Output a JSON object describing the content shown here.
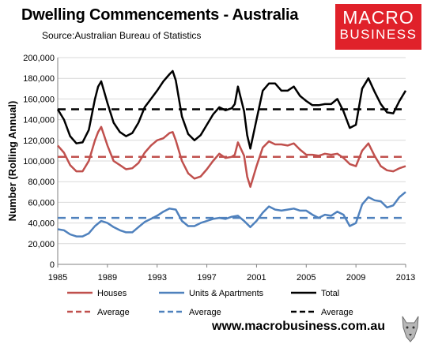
{
  "header": {
    "title": "Dwelling Commencements - Australia",
    "source": "Source:Australian Bureau of Statistics"
  },
  "logo": {
    "line1": "MACRO",
    "line2": "BUSINESS"
  },
  "footer": {
    "website": "www.macrobusiness.com.au"
  },
  "colors": {
    "houses": "#c0504d",
    "units": "#4f81bd",
    "total": "#000000",
    "brand": "#e0212a"
  },
  "chart_data": {
    "type": "line",
    "ylabel": "Number (Rolling Annual)",
    "xlim": [
      1985,
      2013
    ],
    "ylim": [
      0,
      200000
    ],
    "yticks": [
      0,
      20000,
      40000,
      60000,
      80000,
      100000,
      120000,
      140000,
      160000,
      180000,
      200000
    ],
    "ytick_labels": [
      "0",
      "20,000",
      "40,000",
      "60,000",
      "80,000",
      "100,000",
      "120,000",
      "140,000",
      "160,000",
      "180,000",
      "200,000"
    ],
    "xticks": [
      1985,
      1989,
      1993,
      1997,
      2001,
      2005,
      2009,
      2013
    ],
    "xtick_labels": [
      "1985",
      "1989",
      "1993",
      "1997",
      "2001",
      "2005",
      "2009",
      "2013"
    ],
    "grid": true,
    "legend_position": "bottom",
    "series": [
      {
        "name": "Houses",
        "key": "houses",
        "style": "solid",
        "x": [
          1985.0,
          1985.5,
          1986.0,
          1986.5,
          1987.0,
          1987.5,
          1988.0,
          1988.25,
          1988.5,
          1989.0,
          1989.5,
          1990.0,
          1990.5,
          1991.0,
          1991.5,
          1992.0,
          1992.5,
          1993.0,
          1993.5,
          1994.0,
          1994.25,
          1994.5,
          1995.0,
          1995.5,
          1996.0,
          1996.5,
          1997.0,
          1997.5,
          1998.0,
          1998.5,
          1999.0,
          1999.25,
          1999.5,
          2000.0,
          2000.25,
          2000.5,
          2001.0,
          2001.5,
          2002.0,
          2002.5,
          2003.0,
          2003.5,
          2004.0,
          2004.5,
          2005.0,
          2005.5,
          2006.0,
          2006.5,
          2007.0,
          2007.5,
          2008.0,
          2008.5,
          2009.0,
          2009.5,
          2010.0,
          2010.5,
          2011.0,
          2011.5,
          2012.0,
          2012.5,
          2013.0
        ],
        "y": [
          115000,
          108000,
          96000,
          90000,
          90000,
          100000,
          120000,
          128000,
          133000,
          115000,
          100000,
          96000,
          92000,
          93000,
          98000,
          108000,
          115000,
          120000,
          122000,
          127000,
          128000,
          120000,
          100000,
          88000,
          83000,
          85000,
          92000,
          100000,
          107000,
          103000,
          104000,
          106000,
          118000,
          105000,
          85000,
          75000,
          95000,
          113000,
          119000,
          116000,
          116000,
          115000,
          117000,
          111000,
          106000,
          106000,
          105000,
          107000,
          106000,
          107000,
          103000,
          97000,
          95000,
          110000,
          117000,
          105000,
          95000,
          91000,
          90000,
          93000,
          95000
        ]
      },
      {
        "name": "Units & Apartments",
        "key": "units",
        "style": "solid",
        "x": [
          1985.0,
          1985.5,
          1986.0,
          1986.5,
          1987.0,
          1987.5,
          1988.0,
          1988.5,
          1989.0,
          1989.5,
          1990.0,
          1990.5,
          1991.0,
          1991.5,
          1992.0,
          1992.5,
          1993.0,
          1993.5,
          1994.0,
          1994.5,
          1995.0,
          1995.5,
          1996.0,
          1996.5,
          1997.0,
          1997.5,
          1998.0,
          1998.5,
          1999.0,
          1999.5,
          2000.0,
          2000.5,
          2001.0,
          2001.5,
          2002.0,
          2002.5,
          2003.0,
          2003.5,
          2004.0,
          2004.5,
          2005.0,
          2005.5,
          2006.0,
          2006.5,
          2007.0,
          2007.5,
          2008.0,
          2008.5,
          2009.0,
          2009.5,
          2010.0,
          2010.5,
          2011.0,
          2011.5,
          2012.0,
          2012.5,
          2013.0
        ],
        "y": [
          34000,
          33000,
          29000,
          27000,
          27000,
          30000,
          37000,
          42000,
          40000,
          36000,
          33000,
          31000,
          31000,
          36000,
          41000,
          44000,
          47000,
          51000,
          54000,
          53000,
          42000,
          37000,
          37000,
          40000,
          42000,
          44000,
          45000,
          44000,
          46000,
          47000,
          42000,
          36000,
          42000,
          50000,
          56000,
          53000,
          52000,
          53000,
          54000,
          52000,
          52000,
          48000,
          45000,
          48000,
          47000,
          51000,
          48000,
          37000,
          40000,
          58000,
          65000,
          62000,
          61000,
          55000,
          57000,
          65000,
          70000
        ]
      },
      {
        "name": "Total",
        "key": "total",
        "style": "solid",
        "x": [
          1985.0,
          1985.5,
          1986.0,
          1986.5,
          1987.0,
          1987.5,
          1988.0,
          1988.25,
          1988.5,
          1989.0,
          1989.5,
          1990.0,
          1990.5,
          1991.0,
          1991.5,
          1992.0,
          1992.5,
          1993.0,
          1993.5,
          1994.0,
          1994.25,
          1994.5,
          1995.0,
          1995.5,
          1996.0,
          1996.5,
          1997.0,
          1997.5,
          1998.0,
          1998.5,
          1999.0,
          1999.25,
          1999.5,
          2000.0,
          2000.25,
          2000.5,
          2001.0,
          2001.5,
          2002.0,
          2002.5,
          2003.0,
          2003.5,
          2004.0,
          2004.5,
          2005.0,
          2005.5,
          2006.0,
          2006.5,
          2007.0,
          2007.5,
          2008.0,
          2008.5,
          2009.0,
          2009.5,
          2010.0,
          2010.5,
          2011.0,
          2011.5,
          2012.0,
          2012.5,
          2013.0
        ],
        "y": [
          150000,
          140000,
          124000,
          117000,
          118000,
          130000,
          160000,
          172000,
          177000,
          156000,
          137000,
          128000,
          124000,
          127000,
          137000,
          152000,
          160000,
          168000,
          177000,
          184000,
          187000,
          178000,
          143000,
          126000,
          120000,
          125000,
          135000,
          145000,
          152000,
          149000,
          151000,
          155000,
          172000,
          148000,
          125000,
          112000,
          140000,
          168000,
          175000,
          175000,
          168000,
          168000,
          172000,
          163000,
          158000,
          154000,
          154000,
          155000,
          155000,
          160000,
          148000,
          132000,
          135000,
          170000,
          180000,
          167000,
          155000,
          147000,
          146000,
          158000,
          168000
        ]
      },
      {
        "name": "Average",
        "key": "houses_avg",
        "style": "dashed",
        "x": [
          1985,
          2013
        ],
        "y": [
          104000,
          104000
        ]
      },
      {
        "name": "Average",
        "key": "units_avg",
        "style": "dashed",
        "x": [
          1985,
          2013
        ],
        "y": [
          45000,
          45000
        ]
      },
      {
        "name": "Average",
        "key": "total_avg",
        "style": "dashed",
        "x": [
          1985,
          2013
        ],
        "y": [
          150000,
          150000
        ]
      }
    ]
  }
}
